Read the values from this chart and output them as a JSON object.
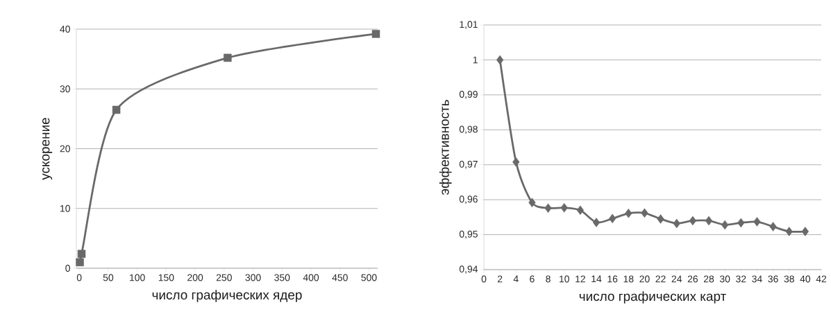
{
  "chart_data": [
    {
      "type": "line",
      "xlabel": "число графических ядер",
      "ylabel": "ускорение",
      "x": [
        1,
        4,
        64,
        256,
        512
      ],
      "series": [
        {
          "color": "#696969",
          "values": [
            1.0,
            2.4,
            26.5,
            35.2,
            39.2
          ]
        }
      ],
      "xlim": [
        -5,
        515
      ],
      "ylim": [
        0,
        40
      ],
      "xticks": [
        0,
        50,
        100,
        150,
        200,
        250,
        300,
        350,
        400,
        450,
        500
      ],
      "yticks": [
        0,
        10,
        20,
        30,
        40
      ],
      "grid": "y",
      "marker": "square",
      "line_style": "solid"
    },
    {
      "type": "line",
      "xlabel": "число графических карт",
      "ylabel": "эффективность",
      "x": [
        2,
        4,
        6,
        8,
        10,
        12,
        14,
        16,
        18,
        20,
        22,
        24,
        26,
        28,
        30,
        32,
        34,
        36,
        38,
        40
      ],
      "series": [
        {
          "color": "#696969",
          "values": [
            1.0,
            0.9708,
            0.9592,
            0.9576,
            0.9577,
            0.957,
            0.9535,
            0.9546,
            0.9561,
            0.9562,
            0.9545,
            0.9532,
            0.954,
            0.954,
            0.9528,
            0.9534,
            0.9537,
            0.9523,
            0.9509,
            0.9509
          ]
        }
      ],
      "xlim": [
        0,
        42
      ],
      "ylim": [
        0.94,
        1.01
      ],
      "xticks": [
        0,
        2,
        4,
        6,
        8,
        10,
        12,
        14,
        16,
        18,
        20,
        22,
        24,
        26,
        28,
        30,
        32,
        34,
        36,
        38,
        40,
        42
      ],
      "yticks": [
        {
          "value": 0.94,
          "label": "0,94"
        },
        {
          "value": 0.95,
          "label": "0,95"
        },
        {
          "value": 0.96,
          "label": "0,96"
        },
        {
          "value": 0.97,
          "label": "0,97"
        },
        {
          "value": 0.98,
          "label": "0,98"
        },
        {
          "value": 0.99,
          "label": "0,99"
        },
        1,
        {
          "value": 1.01,
          "label": "1,01"
        }
      ],
      "grid": "y",
      "marker": "diamond",
      "line_style": "solid"
    }
  ]
}
